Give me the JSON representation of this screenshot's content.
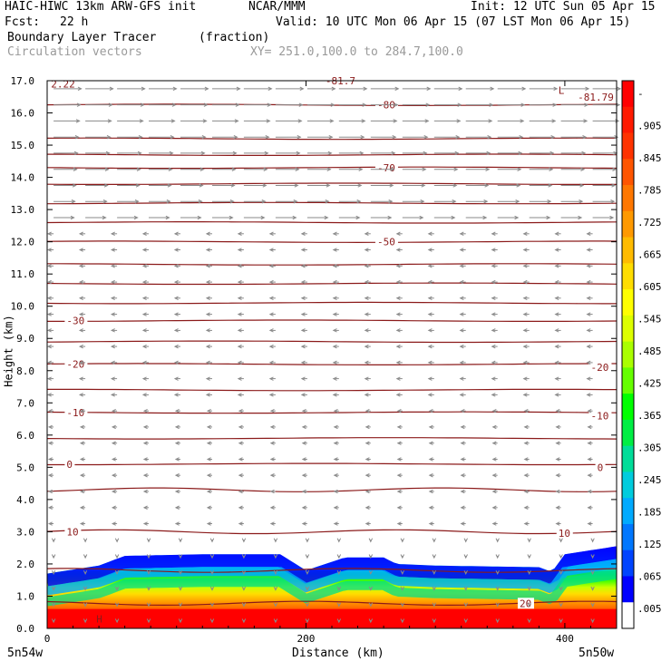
{
  "header": {
    "model": "HAIC-HIWC 13km ARW-GFS init",
    "org": "NCAR/MMM",
    "init": "Init: 12 UTC Sun 05 Apr 15",
    "fcst_label": "Fcst:",
    "fcst_value": "22 h",
    "valid": "Valid: 10 UTC Mon 06 Apr 15 (07 LST Mon 06 Apr 15)",
    "field": "Boundary Layer Tracer",
    "field_units": "(fraction)",
    "vectors": "Circulation vectors",
    "xy": "XY= 251.0,100.0 to 284.7,100.0"
  },
  "chart_data": {
    "type": "heatmap",
    "xlabel": "Distance (km)",
    "ylabel": "Height (km)",
    "xlim": [
      0,
      440
    ],
    "ylim": [
      0,
      17
    ],
    "xticks": [
      "0",
      "200",
      "400"
    ],
    "yticks": [
      "0.0",
      "1.0",
      "2.0",
      "3.0",
      "4.0",
      "5.0",
      "6.0",
      "7.0",
      "8.0",
      "9.0",
      "10.0",
      "11.0",
      "12.0",
      "13.0",
      "14.0",
      "15.0",
      "16.0",
      "17.0"
    ],
    "x_endpoints": {
      "left": "5n54w",
      "right": "5n50w"
    },
    "colorbar": {
      "labels": [
        "-",
        ".905",
        ".845",
        ".785",
        ".725",
        ".665",
        ".605",
        ".545",
        ".485",
        ".425",
        ".365",
        ".305",
        ".245",
        ".185",
        ".125",
        ".065",
        ".005"
      ],
      "colors": [
        "#ff0000",
        "#ff1a00",
        "#ff3300",
        "#ff5500",
        "#ff7700",
        "#ff9900",
        "#ffbb00",
        "#ffdd00",
        "#ffff00",
        "#ddff00",
        "#aaff00",
        "#66ff00",
        "#00ff00",
        "#00ee44",
        "#00dd99",
        "#00ccdd",
        "#00aaff",
        "#0077ff",
        "#0044ff",
        "#0000ff",
        "#ffffff"
      ]
    },
    "tracer_top_km": [
      [
        0,
        1.7
      ],
      [
        40,
        1.95
      ],
      [
        60,
        2.25
      ],
      [
        120,
        2.3
      ],
      [
        180,
        2.3
      ],
      [
        190,
        2.05
      ],
      [
        200,
        1.8
      ],
      [
        230,
        2.2
      ],
      [
        260,
        2.2
      ],
      [
        270,
        2.0
      ],
      [
        300,
        1.95
      ],
      [
        380,
        1.9
      ],
      [
        390,
        1.75
      ],
      [
        400,
        2.3
      ],
      [
        440,
        2.55
      ]
    ],
    "isotherms": [
      {
        "label": "-80",
        "z": 16.25,
        "lx": 255
      },
      {
        "label": "-81.7",
        "z": 17.0,
        "lx": 215
      },
      {
        "label": "-81.79",
        "z": 16.5,
        "lx": 410
      },
      {
        "label": "-70",
        "z": 14.3,
        "lx": 255
      },
      {
        "label": "-50",
        "z": 12.0,
        "lx": 255
      },
      {
        "label": "-30",
        "z": 9.55,
        "lx": 15
      },
      {
        "label": "-20",
        "z": 8.2,
        "lx": 15
      },
      {
        "label": "-20",
        "z": 8.1,
        "lx": 420
      },
      {
        "label": "-10",
        "z": 6.7,
        "lx": 15
      },
      {
        "label": "-10",
        "z": 6.6,
        "lx": 420
      },
      {
        "label": "0",
        "z": 5.1,
        "lx": 15
      },
      {
        "label": "0",
        "z": 5.0,
        "lx": 425
      },
      {
        "label": "10",
        "z": 3.0,
        "lx": 15
      },
      {
        "label": "10",
        "z": 2.95,
        "lx": 395
      },
      {
        "label": "20",
        "z": 0.78,
        "lx": 365
      }
    ],
    "isotherm_levels_km": [
      16.25,
      15.2,
      14.7,
      14.3,
      13.8,
      13.2,
      12.6,
      12.0,
      11.3,
      10.7,
      10.1,
      9.55,
      8.9,
      8.2,
      7.4,
      6.7,
      5.9,
      5.1,
      4.3,
      3.0,
      1.8,
      0.78
    ],
    "extra_labels": [
      {
        "text": "2.22",
        "x": 3,
        "z": 16.9
      },
      {
        "text": "L",
        "x": 395,
        "z": 16.7
      },
      {
        "text": "H",
        "x": 38,
        "z": 0.3
      }
    ]
  },
  "colors": {
    "contour": "#8b1a1a",
    "vector": "#8a8a8a"
  }
}
